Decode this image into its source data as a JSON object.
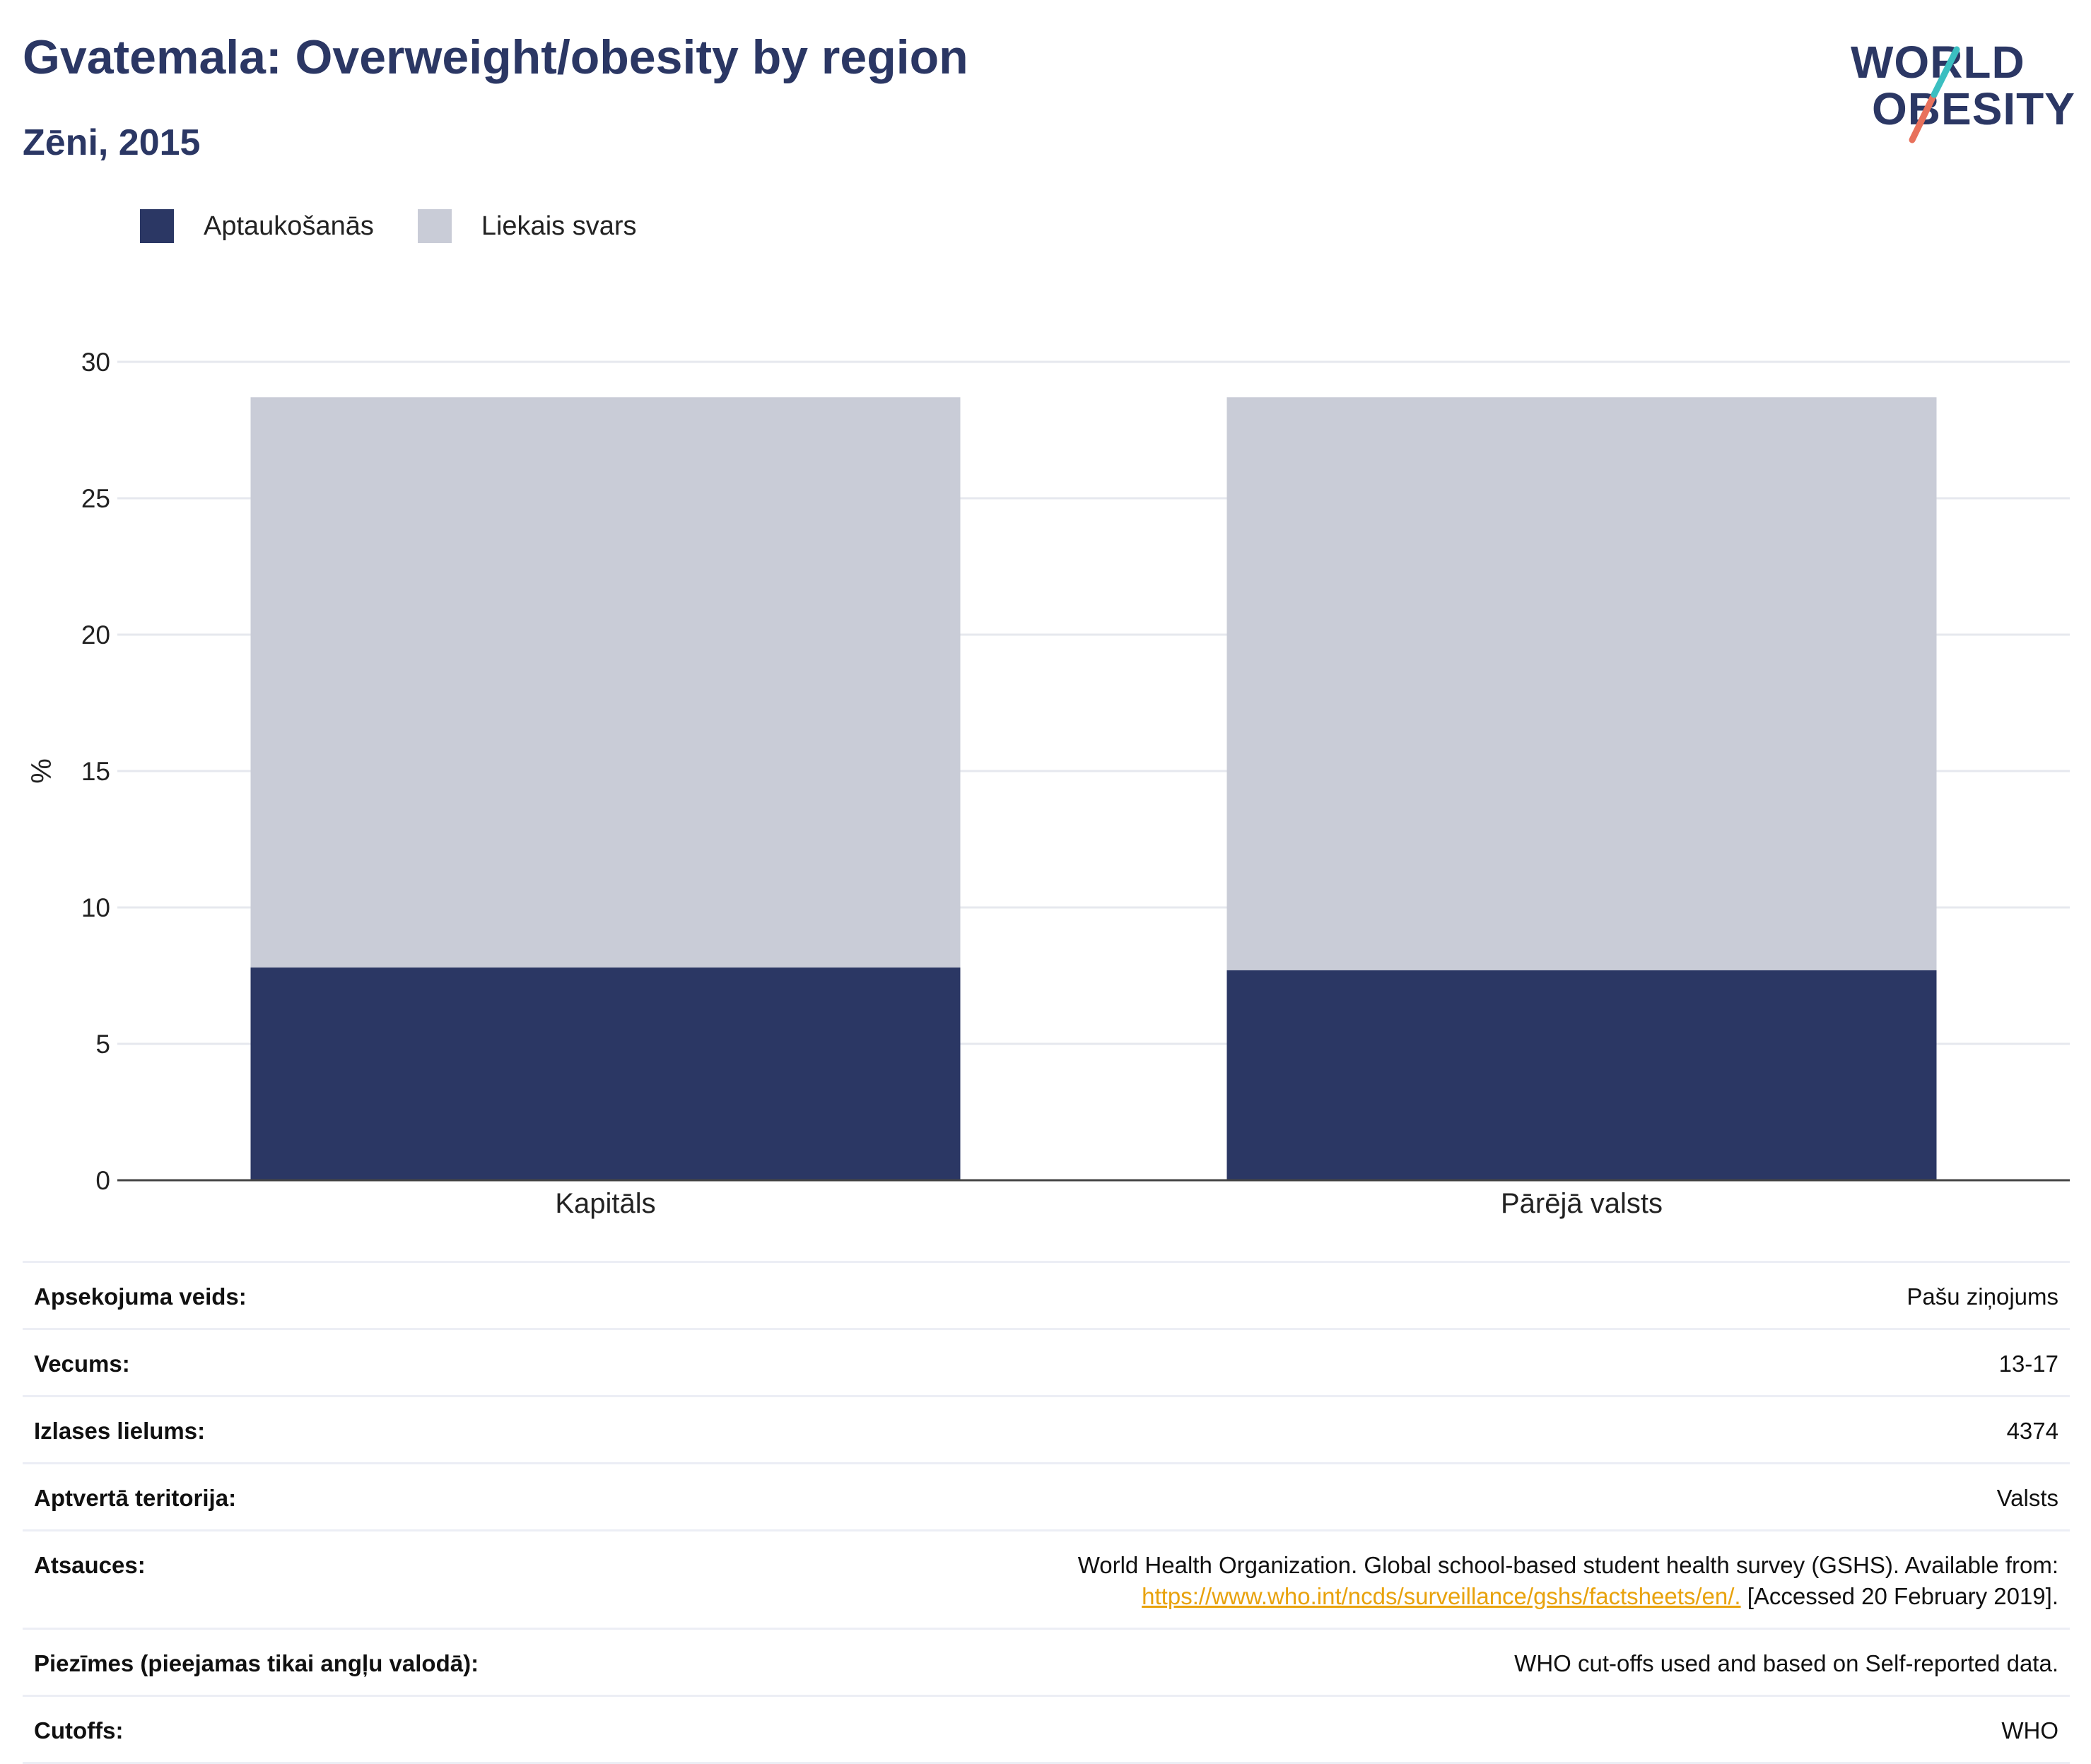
{
  "header": {
    "title": "Gvatemala: Overweight/obesity by region",
    "subtitle": "Zēni, 2015"
  },
  "logo": {
    "line1": "WORLD",
    "line2": "OBESITY",
    "colors": {
      "text": "#2b3764",
      "slash_top": "#3bbfc1",
      "slash_bottom": "#e8715c"
    }
  },
  "legend": {
    "items": [
      {
        "label": "Aptaukošanās",
        "color": "#2b3764"
      },
      {
        "label": "Liekais svars",
        "color": "#c9ccd7"
      }
    ]
  },
  "chart_data": {
    "type": "bar",
    "stacked": true,
    "categories": [
      "Kapitāls",
      "Pārējā valsts"
    ],
    "series": [
      {
        "name": "Aptaukošanās",
        "color": "#2b3764",
        "values": [
          7.8,
          7.7
        ]
      },
      {
        "name": "Liekais svars",
        "color": "#c9ccd7",
        "values": [
          20.9,
          21.0
        ]
      }
    ],
    "ylabel": "%",
    "ylim": [
      0,
      30
    ],
    "yticks": [
      0,
      5,
      10,
      15,
      20,
      25,
      30
    ],
    "grid": true,
    "legend_position": "top-left"
  },
  "info": {
    "rows": [
      {
        "label": "Apsekojuma veids:",
        "value": "Pašu ziņojums"
      },
      {
        "label": "Vecums:",
        "value": "13-17"
      },
      {
        "label": "Izlases lielums:",
        "value": "4374"
      },
      {
        "label": "Aptvertā teritorija:",
        "value": "Valsts"
      }
    ],
    "references": {
      "label": "Atsauces:",
      "text": "World Health Organization. Global school-based student health survey (GSHS). Available from:",
      "link": "https://www.who.int/ncds/surveillance/gshs/factsheets/en/.",
      "accessed": "[Accessed 20 February 2019]."
    },
    "notes": {
      "label": "Piezīmes (pieejamas tikai angļu valodā):",
      "value": "WHO cut-offs used and based on Self-reported data."
    },
    "cutoffs": {
      "label": "Cutoffs:",
      "value": "WHO"
    }
  }
}
